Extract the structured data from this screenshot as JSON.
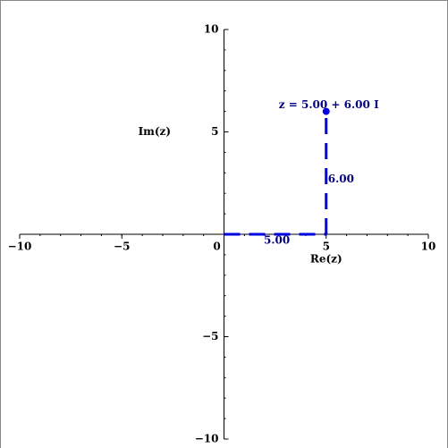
{
  "chart_data": {
    "type": "scatter",
    "x": [
      5
    ],
    "values": [
      6
    ],
    "color": "#0000e0",
    "annotation": "z = 5.00 + 6.00 I",
    "value_labels": [
      "6.00"
    ],
    "x_value_labels": [
      "5.00"
    ],
    "xlabel": "Re(z)",
    "ylabel": "Im(z)",
    "xlim": [
      -10,
      10
    ],
    "ylim": [
      -10,
      10
    ],
    "xticks": [
      {
        "value": -10,
        "label": "−10"
      },
      {
        "value": -5,
        "label": "−5"
      },
      0,
      5,
      10
    ],
    "yticks": [
      {
        "value": -10,
        "label": "−10"
      },
      {
        "value": -5,
        "label": "−5"
      },
      5,
      10
    ],
    "minor_step": 1
  }
}
